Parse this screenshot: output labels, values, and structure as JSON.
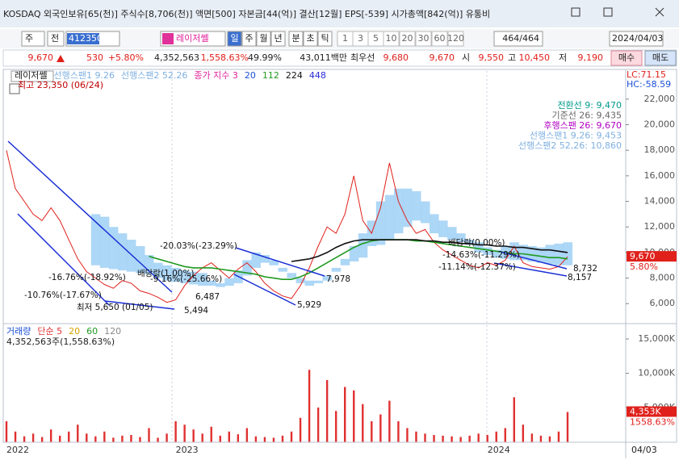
{
  "title_bar": {
    "text": "KOSDAQ 외국인보유[65(천)] 주식수[8,706(천)] 액면[500] 자본금[44(억)] 결산[12월] EPS[-539] 시가총액[842(억)] 유통비"
  },
  "toolbar": {
    "market": "주",
    "kind": "전",
    "code": "412350",
    "name": "레이저쎌",
    "periods": [
      "일",
      "주",
      "월",
      "년",
      "분",
      "초",
      "틱"
    ],
    "intervals": [
      "1",
      "3",
      "5",
      "10",
      "20",
      "30",
      "60",
      "120"
    ],
    "count": "464/464",
    "date": "2024/04/03"
  },
  "quote": {
    "price": "9,670",
    "change": "530",
    "rate": "+5.80%",
    "volume": "4,352,563",
    "volume_rate": "1,558.63%",
    "turnover": "49.99%",
    "amount": "43,011백만",
    "best_label": "최우선",
    "ask": "9,680",
    "bid": "9,670",
    "open_label": "시",
    "open": "9,550",
    "high_label": "고",
    "high": "10,450",
    "low_label": "저",
    "low": "9,190",
    "buy": "매수",
    "sell": "매도"
  },
  "chart_data": [
    {
      "type": "line",
      "categories": [
        "2022",
        null,
        null,
        null,
        null,
        null,
        null,
        null,
        null,
        null,
        null,
        null,
        null,
        null,
        null,
        null,
        null,
        null,
        null,
        "2023",
        null,
        null,
        null,
        null,
        null,
        null,
        null,
        null,
        null,
        null,
        null,
        null,
        null,
        null,
        null,
        null,
        null,
        null,
        null,
        null,
        null,
        null,
        null,
        null,
        null,
        null,
        null,
        null,
        null,
        null,
        null,
        null,
        null,
        null,
        "2024",
        null,
        null,
        null,
        null,
        null,
        null,
        null,
        null,
        null
      ],
      "series": [
        {
          "name": "레이저쎌",
          "color": "#e0201b",
          "values": [
            18000,
            15000,
            14000,
            13000,
            12500,
            13500,
            12500,
            11000,
            9500,
            8500,
            8000,
            7500,
            7200,
            7800,
            7600,
            7000,
            6800,
            6500,
            6100,
            6300,
            7400,
            8200,
            8800,
            9200,
            8600,
            8000,
            8700,
            9200,
            8500,
            7600,
            7000,
            6600,
            6400,
            7400,
            8800,
            10500,
            12000,
            11500,
            13000,
            16000,
            12500,
            11500,
            13500,
            17000,
            14000,
            12500,
            11500,
            11800,
            10800,
            10200,
            9800,
            9400,
            9000,
            8800,
            9200,
            9000,
            9400,
            10500,
            9200,
            8900,
            8800,
            8700,
            8900,
            9670
          ]
        },
        {
          "name": "선행스팬1 9.26",
          "color": "#9fd0f5",
          "band": true,
          "values": [
            null,
            null,
            null,
            null,
            null,
            null,
            null,
            null,
            null,
            null,
            13000,
            12800,
            12000,
            11500,
            11000,
            10500,
            9800,
            9200,
            9000,
            8800,
            8600,
            8500,
            8400,
            7800,
            7600,
            8000,
            8600,
            9400,
            10000,
            9800,
            9400,
            8800,
            8400,
            8000,
            7800,
            7600,
            7800,
            8500,
            9500,
            10500,
            11500,
            12500,
            14000,
            14500,
            15000,
            15000,
            14800,
            14000,
            13000,
            12500,
            12000,
            11500,
            11000,
            10800,
            10400,
            10200,
            10500,
            10800,
            10600,
            10500,
            10400,
            10600,
            10700,
            10800
          ]
        },
        {
          "name": "선행스팬2 52.26",
          "color": "#9fd0f5",
          "band": true,
          "values": [
            null,
            null,
            null,
            null,
            null,
            null,
            null,
            null,
            null,
            null,
            9000,
            8800,
            8700,
            8600,
            8500,
            8400,
            8300,
            8000,
            7800,
            7700,
            7600,
            7500,
            7400,
            7400,
            7300,
            7400,
            7600,
            8200,
            8800,
            9200,
            9000,
            8500,
            8000,
            7600,
            7400,
            7800,
            8200,
            8800,
            9000,
            9300,
            9600,
            10500,
            10600,
            11000,
            11500,
            12000,
            12500,
            12300,
            11500,
            11200,
            11000,
            10800,
            10600,
            10000,
            9800,
            9600,
            9500,
            9400,
            9400,
            9300,
            9200,
            9100,
            9000,
            9000
          ]
        },
        {
          "name": "112",
          "color": "#1f9a1f",
          "values": [
            null,
            null,
            null,
            null,
            null,
            null,
            null,
            null,
            null,
            null,
            null,
            null,
            null,
            null,
            null,
            null,
            9700,
            9500,
            9300,
            9100,
            8900,
            8800,
            8800,
            8800,
            8700,
            8600,
            8500,
            8400,
            8300,
            8100,
            8000,
            7900,
            7900,
            8100,
            8400,
            8800,
            9200,
            9600,
            10000,
            10400,
            10700,
            10900,
            11000,
            11000,
            11000,
            11000,
            10900,
            10900,
            10800,
            10700,
            10600,
            10500,
            10400,
            10300,
            10200,
            10100,
            10000,
            9900,
            9900,
            9800,
            9700,
            9600,
            9600,
            9500
          ]
        },
        {
          "name": "224",
          "color": "#111111",
          "values": [
            null,
            null,
            null,
            null,
            null,
            null,
            null,
            null,
            null,
            null,
            null,
            null,
            null,
            null,
            null,
            null,
            null,
            null,
            null,
            null,
            null,
            null,
            null,
            null,
            null,
            null,
            null,
            null,
            null,
            null,
            null,
            null,
            9300,
            9400,
            9500,
            9700,
            10000,
            10400,
            10700,
            10900,
            11000,
            11000,
            11000,
            11000,
            11000,
            11000,
            11000,
            10900,
            10900,
            10800,
            10800,
            10700,
            10700,
            10600,
            10600,
            10500,
            10500,
            10400,
            10400,
            10300,
            10200,
            10200,
            10100,
            10000
          ]
        }
      ],
      "legend_extra": [
        {
          "name": "종가 지수 3",
          "color": "#e0209a"
        },
        {
          "name": "20",
          "color": "#1a4fd6"
        },
        {
          "name": "448",
          "color": "#2b2bd6"
        }
      ],
      "ylim": [
        4500,
        24200
      ],
      "yticks": [
        {
          "value": 6000,
          "label": "6,000"
        },
        {
          "value": 8000,
          "label": "8,000"
        },
        {
          "value": 10000,
          "label": "10,000"
        },
        {
          "value": 12000,
          "label": "12,000"
        },
        {
          "value": 14000,
          "label": "14,000"
        },
        {
          "value": 16000,
          "label": "16,000"
        },
        {
          "value": 18000,
          "label": "18,000"
        },
        {
          "value": 20000,
          "label": "20,000"
        },
        {
          "value": 22000,
          "label": "22,000"
        }
      ],
      "high_note": "최고 23,350 (06/24)",
      "lc": "LC:71.15",
      "hc": "HC:-58.59",
      "info": [
        {
          "text": "전환선 9: 9,470",
          "color": "#00998a"
        },
        {
          "text": "기준선 26: 9,435",
          "color": "#666666"
        },
        {
          "text": "후행스팬 26: 9,670",
          "color": "#b000c0"
        },
        {
          "text": "선행스팬1 9,26: 9,453",
          "color": "#7fb0e0"
        },
        {
          "text": "선행스팬2 52,26: 10,860",
          "color": "#7fb0e0"
        }
      ],
      "annotations": [
        "-20.03%(-23.29%)",
        "7,978",
        "5,929",
        "-16.76%(-18.92%)",
        "배당락(1.00%)",
        "-9.16%(-25.66%)",
        "-10.76%(-17.67%)",
        "최저 5,650 (01/05)",
        "5,494",
        "6,487",
        "배당락(0.00%)",
        "-14.63%(-11.29%)",
        "-11.14%(-12.37%)",
        "8,732",
        "8,157"
      ],
      "last_tag": {
        "value": 9670,
        "label": "9,670",
        "rate": "5.80%"
      },
      "end_date": "04/03"
    },
    {
      "type": "bar",
      "series": [
        {
          "name": "거래량",
          "color": "#e03030",
          "values": [
            3000,
            1500,
            800,
            1200,
            700,
            1800,
            900,
            1500,
            2500,
            1200,
            800,
            1500,
            600,
            900,
            1000,
            700,
            2000,
            600,
            1200,
            3000,
            2500,
            1800,
            1200,
            2200,
            900,
            1500,
            1100,
            2000,
            800,
            700,
            600,
            900,
            1500,
            3500,
            10500,
            5000,
            9000,
            4500,
            8000,
            7500,
            5500,
            3000,
            4000,
            6000,
            3000,
            2000,
            1500,
            1200,
            1000,
            900,
            800,
            700,
            900,
            1200,
            1000,
            1500,
            2000,
            6500,
            2500,
            1200,
            900,
            800,
            1500,
            4353
          ]
        }
      ],
      "legend_extra": [
        {
          "name": "단순 5",
          "color": "#e03030"
        },
        {
          "name": "20",
          "color": "#d6a000"
        },
        {
          "name": "60",
          "color": "#1f9a1f"
        },
        {
          "name": "120",
          "color": "#888888"
        }
      ],
      "ylim": [
        0,
        17000
      ],
      "yticks": [
        {
          "value": 5000,
          "label": "5,000K"
        },
        {
          "value": 10000,
          "label": "10,000K"
        },
        {
          "value": 15000,
          "label": "15,000K"
        }
      ],
      "summary": "4,352,563주(1,558.63%)",
      "last_tag": {
        "value": 4353,
        "label": "4,353K",
        "rate": "1558.63%"
      }
    }
  ]
}
